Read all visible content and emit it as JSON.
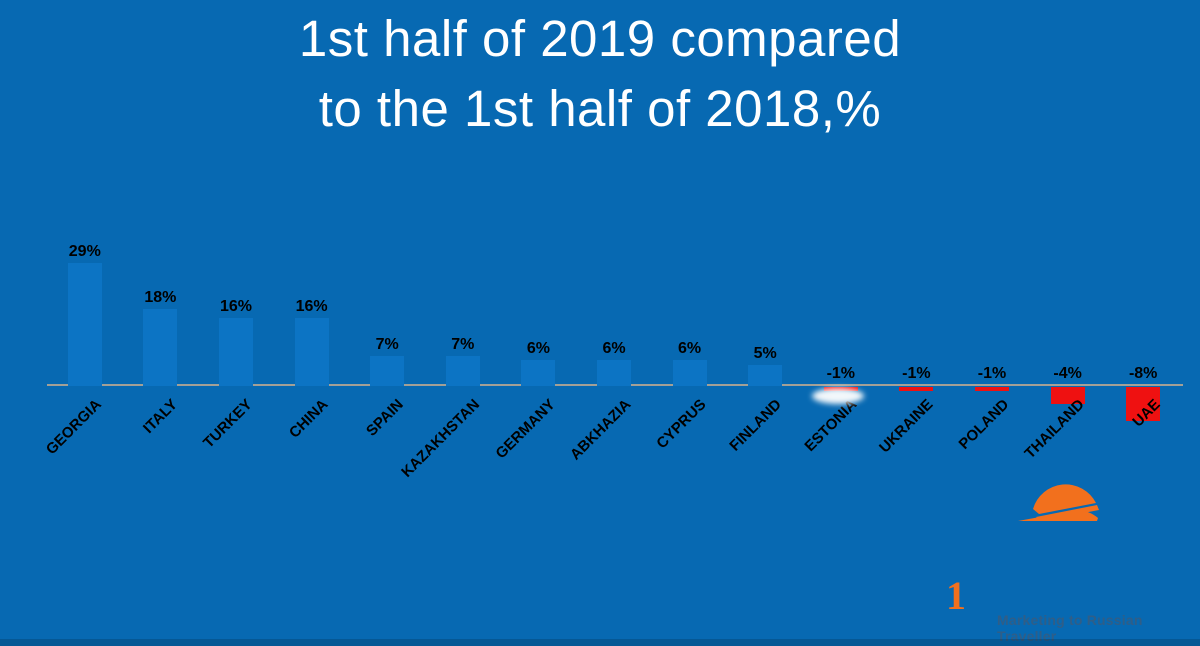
{
  "title": {
    "line1": "1st half of 2019 compared",
    "line2": "to the 1st half of 2018,%"
  },
  "chart_data": {
    "type": "bar",
    "title": "1st half of 2019 compared to the 1st half of 2018,%",
    "xlabel": "",
    "ylabel": "",
    "ylim": [
      -10,
      30
    ],
    "grid": false,
    "legend": null,
    "categories": [
      "GEORGIA",
      "ITALY",
      "TURKEY",
      "CHINA",
      "SPAIN",
      "KAZAKHSTAN",
      "GERMANY",
      "ABKHAZIA",
      "CYPRUS",
      "FINLAND",
      "ESTONIA",
      "UKRAINE",
      "POLAND",
      "THAILAND",
      "UAE"
    ],
    "values": [
      29,
      18,
      16,
      16,
      7,
      7,
      6,
      6,
      6,
      5,
      -1,
      -1,
      -1,
      -4,
      -8
    ],
    "labels": [
      "29%",
      "18%",
      "16%",
      "16%",
      "7%",
      "7%",
      "6%",
      "6%",
      "6%",
      "5%",
      "-1%",
      "-1%",
      "-1%",
      "-4%",
      "-8%"
    ],
    "positive_bar_color": "#0c74c4",
    "negative_bar_color": "#ef1111",
    "baseline_color": "#a3a097",
    "label_color": "#000000"
  },
  "footer": {
    "page_number": "1",
    "tagline": "Marketing to Russian Traveller"
  },
  "logo": {
    "name": "sun-swoosh-logo",
    "color": "#f2701d"
  },
  "colors": {
    "background": "#0769b2",
    "title_text": "#ffffff",
    "accent_orange": "#f2701d",
    "tagline_text": "#2f5e88"
  }
}
